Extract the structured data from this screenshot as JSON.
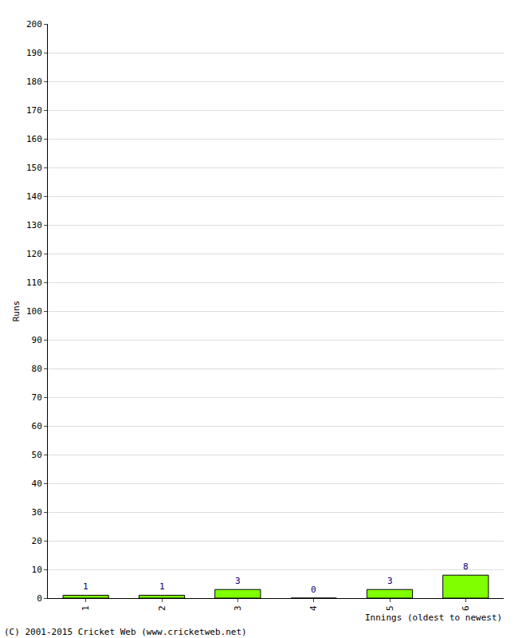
{
  "chart_data": {
    "type": "bar",
    "categories": [
      "1",
      "2",
      "3",
      "4",
      "5",
      "6"
    ],
    "values": [
      1,
      1,
      3,
      0,
      3,
      8
    ],
    "color": "#80ff00",
    "x_label": "Innings (oldest to newest)",
    "y_label": "Runs",
    "footer": "(C) 2001-2015 Cricket Web (www.cricketweb.net)",
    "ylim": [
      0,
      200
    ],
    "yticks": [
      0,
      10,
      20,
      30,
      40,
      50,
      60,
      70,
      80,
      90,
      100,
      110,
      120,
      130,
      140,
      150,
      160,
      170,
      180,
      190,
      200
    ],
    "grid": true,
    "data_labels": true
  }
}
